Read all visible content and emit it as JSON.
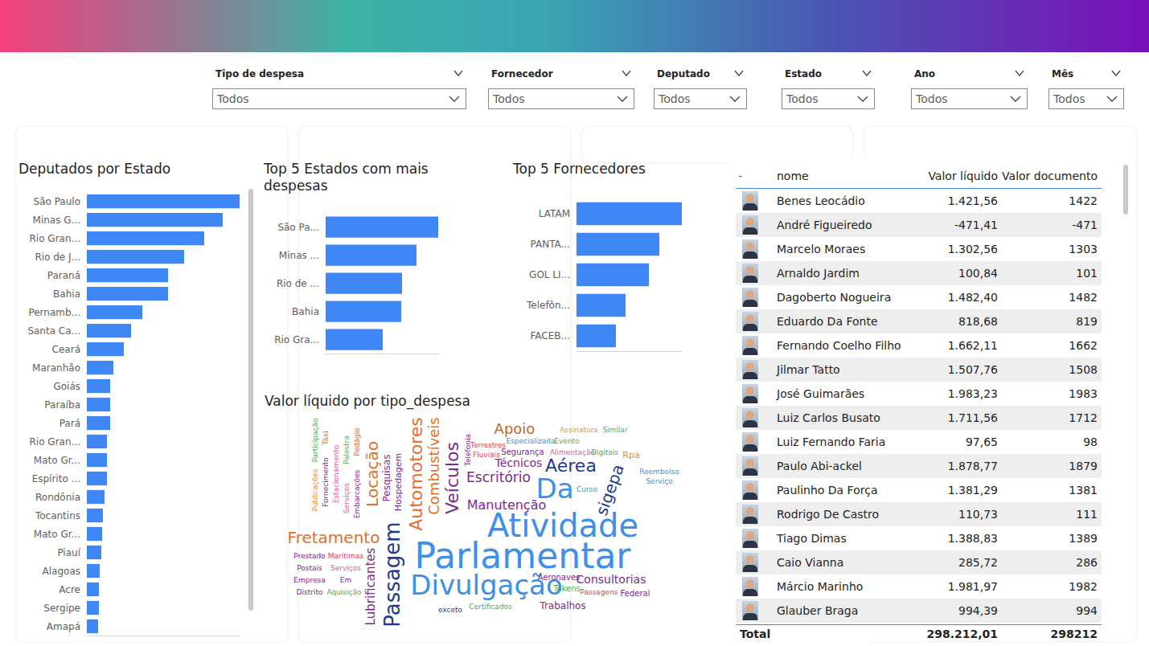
{
  "slicers": [
    {
      "label": "Tipo de despesa",
      "value": "Todos"
    },
    {
      "label": "Fornecedor",
      "value": "Todos"
    },
    {
      "label": "Deputado",
      "value": "Todos"
    },
    {
      "label": "Estado",
      "value": "Todos"
    },
    {
      "label": "Ano",
      "value": "Todos"
    },
    {
      "label": "Mês",
      "value": "Todos"
    }
  ],
  "chart_data": [
    {
      "type": "bar",
      "title": "Deputados por Estado",
      "orientation": "horizontal",
      "categories": [
        "São Paulo",
        "Minas G...",
        "Rio Gran...",
        "Rio de J...",
        "Paraná",
        "Bahia",
        "Pernamb...",
        "Santa Ca...",
        "Ceará",
        "Maranhão",
        "Goiás",
        "Paraíba",
        "Pará",
        "Rio Gran...",
        "Mato Gr...",
        "Espírito ...",
        "Rondônia",
        "Tocantins",
        "Mato Gr...",
        "Piauí",
        "Alagoas",
        "Acre",
        "Sergipe",
        "Amapá"
      ],
      "values": [
        190,
        169,
        146,
        121,
        101,
        101,
        69,
        55,
        46,
        33,
        29,
        29,
        29,
        25,
        25,
        25,
        22,
        20,
        19,
        18,
        16,
        15,
        15,
        14
      ],
      "color": "#3f87f5",
      "xlim": [
        0,
        190
      ],
      "tick_labels": "y",
      "grid": false
    },
    {
      "type": "bar",
      "title": "Top 5 Estados com mais despesas",
      "orientation": "horizontal",
      "categories": [
        "São Pa...",
        "Minas ...",
        "Rio de ...",
        "Bahia",
        "Rio Gra..."
      ],
      "values": [
        140,
        113,
        95,
        94,
        71
      ],
      "color": "#3f87f5",
      "xlim": [
        0,
        140
      ],
      "tick_labels": "y",
      "grid": false
    },
    {
      "type": "bar",
      "title": "Top 5 Fornecedores",
      "orientation": "horizontal",
      "categories": [
        "LATAM",
        "PANTA...",
        "GOL LI...",
        "Telefôn...",
        "FACEB..."
      ],
      "values": [
        131,
        103,
        90,
        61,
        49
      ],
      "color": "#3f87f5",
      "xlim": [
        0,
        131
      ],
      "tick_labels": "y",
      "grid": false
    }
  ],
  "wordcloud": {
    "title": "Valor líquido por tipo_despesa",
    "words": [
      "Parlamentar",
      "Atividade",
      "Divulgação",
      "Da",
      "Passagem",
      "Aérea",
      "Automotores",
      "Veículos",
      "Locação",
      "Fretamento",
      "sigepa",
      "Combustíveis",
      "Apoio",
      "Escritório",
      "Manutenção",
      "Lubrificantes",
      "Consultorias",
      "Técnicos",
      "Pesquisas",
      "Trabalhos",
      "Hospedagem",
      "Rpa",
      "Segurança",
      "Aeronaves",
      "Tokens",
      "Federal",
      "Distrito",
      "Em",
      "Empresa",
      "Telefonia",
      "Postais",
      "Serviços",
      "Prestado",
      "Marítimas",
      "Aquisição",
      "Certificados",
      "Passagens",
      "exceto",
      "Curso",
      "Reembolso",
      "Serviço",
      "Terrestres",
      "Fluviais",
      "Especializada",
      "Evento",
      "Alimentação",
      "Digitais",
      "Assinatura",
      "Similar",
      "Publicações",
      "Participação",
      "Fornecimento",
      "Táxi",
      "Estacionamento",
      "Palestra",
      "Serviços",
      "Pedágio",
      "Embarcações"
    ],
    "values": [
      44,
      40,
      34,
      34,
      26,
      22,
      22,
      22,
      20,
      20,
      20,
      18,
      18,
      17,
      16,
      15,
      14,
      14,
      12,
      12,
      11,
      11,
      10,
      10,
      10,
      10,
      9,
      9,
      9,
      9,
      9,
      9,
      9,
      9,
      9,
      9,
      9,
      9,
      9,
      9,
      9,
      9,
      9,
      9,
      9,
      9,
      9,
      9,
      9,
      9,
      9,
      9,
      9,
      9,
      9,
      9,
      9,
      9
    ],
    "colors": [
      "#3d8fe8",
      "#3d8fe8",
      "#3d8fe8",
      "#3d8fe8",
      "#1f3a8a",
      "#1f3a8a",
      "#e0702a",
      "#7a2a8c",
      "#e0702a",
      "#e0702a",
      "#1f3a8a",
      "#e0702a",
      "#c0692a",
      "#7a2a8c",
      "#7a2a8c",
      "#7a2a8c",
      "#7a2a8c",
      "#7a2a8c",
      "#7a2a8c",
      "#7a2a8c",
      "#7a2a8c",
      "#e0902a",
      "#7a2a8c",
      "#7a2a8c",
      "#4cae4c",
      "#7a2a8c",
      "#7a2a8c",
      "#7a2a8c",
      "#7a2a8c",
      "#7a2a8c",
      "#7a2a8c",
      "#e05a9c",
      "#7a2a8c",
      "#e0474c",
      "#4cae4c",
      "#4cae4c",
      "#e0474c",
      "#1f3a8a",
      "#2aa3b0",
      "#3d8fe8",
      "#3d8fe8",
      "#e0474c",
      "#e0474c",
      "#3d8fe8",
      "#4cae4c",
      "#e05a9c",
      "#4cae4c",
      "#d4a017",
      "#4cae4c",
      "#e0902a",
      "#4cae4c",
      "#7a2a8c",
      "#e0702a",
      "#e05a9c",
      "#4cae4c",
      "#e05a9c",
      "#e0702a",
      "#7a2a8c"
    ]
  },
  "table": {
    "columns": [
      "-",
      "nome",
      "Valor líquido",
      "Valor documento"
    ],
    "rows": [
      [
        "Benes Leocádio",
        "1.421,56",
        "1422"
      ],
      [
        "André Figueiredo",
        "-471,41",
        "-471"
      ],
      [
        "Marcelo Moraes",
        "1.302,56",
        "1303"
      ],
      [
        "Arnaldo Jardim",
        "100,84",
        "101"
      ],
      [
        "Dagoberto Nogueira",
        "1.482,40",
        "1482"
      ],
      [
        "Eduardo Da Fonte",
        "818,68",
        "819"
      ],
      [
        "Fernando Coelho Filho",
        "1.662,11",
        "1662"
      ],
      [
        "Jilmar Tatto",
        "1.507,76",
        "1508"
      ],
      [
        "José Guimarães",
        "1.983,23",
        "1983"
      ],
      [
        "Luiz Carlos Busato",
        "1.711,56",
        "1712"
      ],
      [
        "Luiz Fernando Faria",
        "97,65",
        "98"
      ],
      [
        "Paulo Abi-ackel",
        "1.878,77",
        "1879"
      ],
      [
        "Paulinho Da Força",
        "1.381,29",
        "1381"
      ],
      [
        "Rodrigo De Castro",
        "110,73",
        "111"
      ],
      [
        "Tiago Dimas",
        "1.388,83",
        "1389"
      ],
      [
        "Caio Vianna",
        "285,72",
        "286"
      ],
      [
        "Márcio Marinho",
        "1.981,97",
        "1982"
      ],
      [
        "Glauber Braga",
        "994,39",
        "994"
      ]
    ],
    "total": [
      "Total",
      "298.212,01",
      "298212"
    ]
  }
}
